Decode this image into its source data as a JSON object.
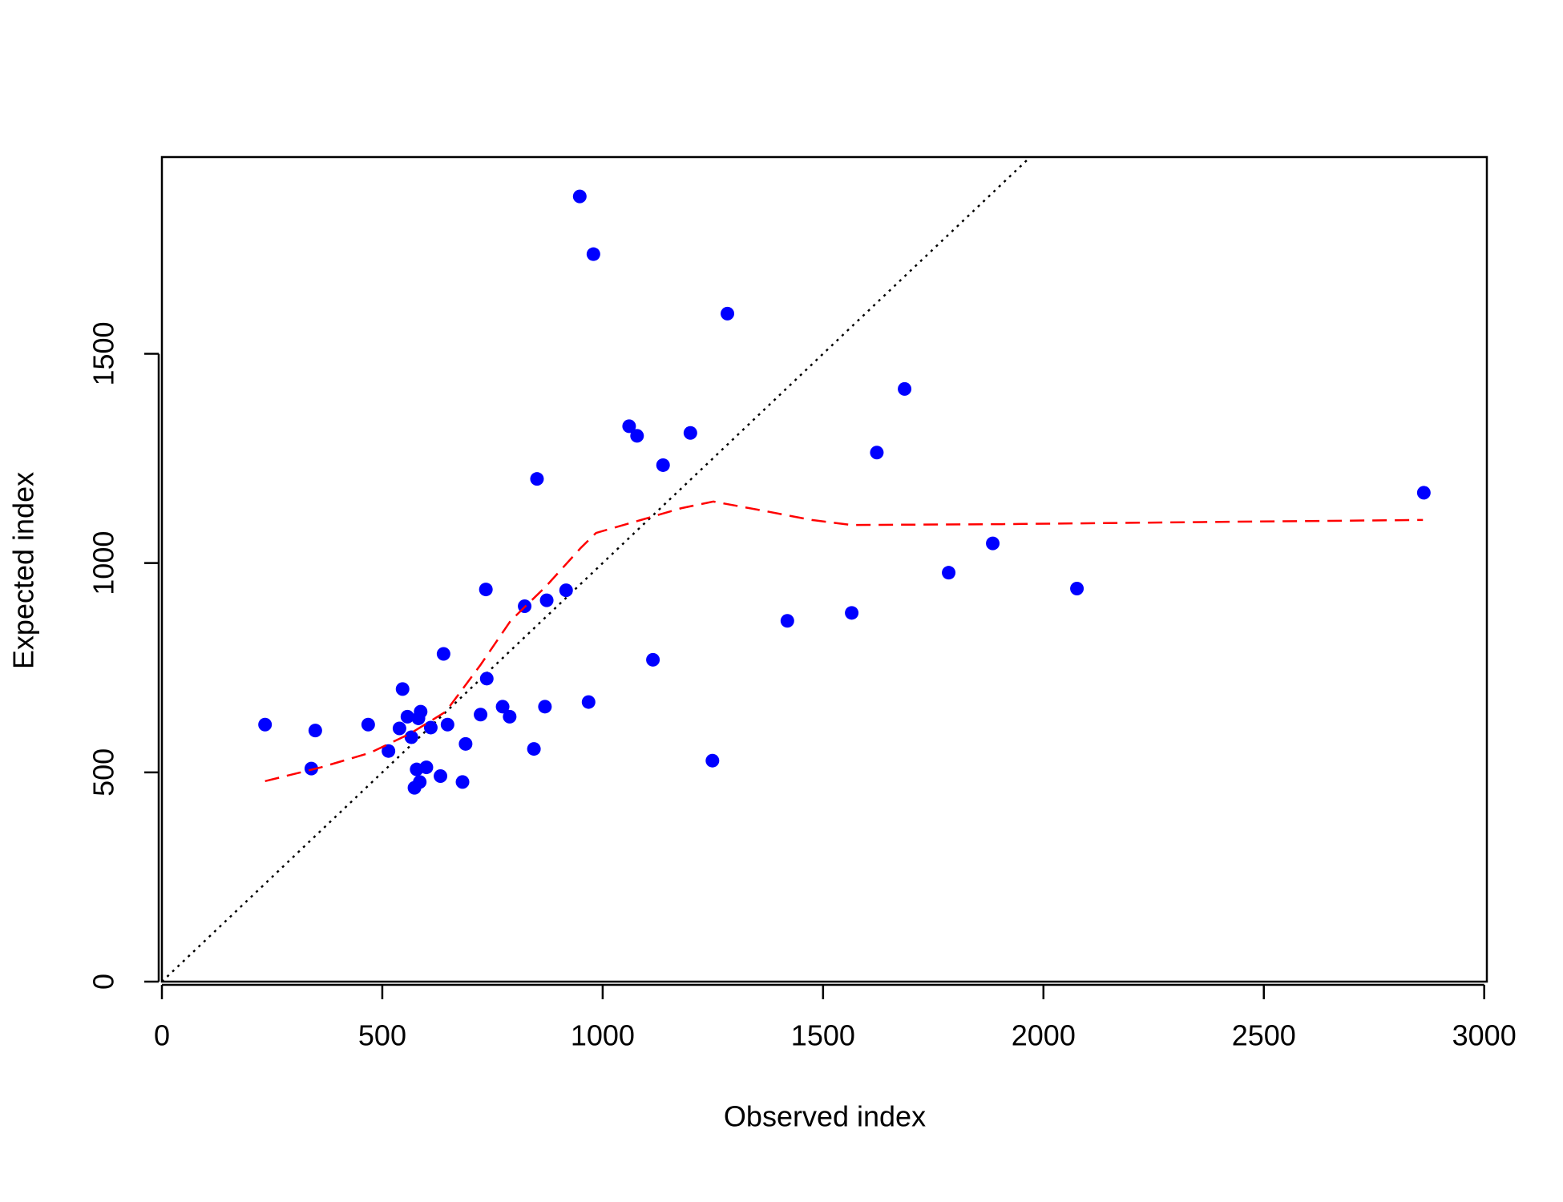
{
  "chart_data": {
    "type": "scatter",
    "x_label": "Observed index",
    "y_label": "Expected index",
    "xlim": [
      0,
      3006
    ],
    "ylim": [
      0,
      1970
    ],
    "xticks": [
      0,
      500,
      1000,
      1500,
      2000,
      2500,
      3000
    ],
    "yticks": [
      0,
      500,
      1000,
      1500
    ],
    "identity_line": true,
    "series": [
      {
        "type": "scatter",
        "color": "#0000ff",
        "x": [
          234,
          339,
          348,
          468,
          514,
          539,
          546,
          557,
          566,
          573,
          578,
          582,
          585,
          587,
          600,
          610,
          632,
          639,
          648,
          682,
          689,
          723,
          735,
          737,
          773,
          789,
          823,
          844,
          851,
          869,
          873,
          917,
          948,
          968,
          979,
          1060,
          1078,
          1114,
          1137,
          1199,
          1249,
          1283,
          1419,
          1565,
          1622,
          1685,
          1785,
          1885,
          2076,
          2863
        ],
        "values": [
          614,
          509,
          600,
          614,
          551,
          605,
          699,
          633,
          584,
          463,
          507,
          629,
          477,
          645,
          512,
          607,
          491,
          783,
          614,
          477,
          568,
          638,
          937,
          724,
          657,
          633,
          897,
          556,
          1201,
          657,
          911,
          935,
          1876,
          668,
          1738,
          1327,
          1304,
          769,
          1234,
          1311,
          528,
          1596,
          862,
          881,
          1264,
          1416,
          977,
          1047,
          939,
          1168
        ]
      },
      {
        "type": "line",
        "color": "#ff0000",
        "x": [
          234,
          361,
          473,
          564,
          644,
          723,
          791,
          871,
          951,
          985,
          1087,
          1178,
          1251,
          1360,
          1474,
          1565,
          1906,
          2361,
          2861
        ],
        "values": [
          479,
          512,
          547,
          593,
          645,
          757,
          862,
          944,
          1037,
          1072,
          1103,
          1131,
          1147,
          1126,
          1103,
          1091,
          1093,
          1098,
          1103
        ]
      }
    ]
  }
}
